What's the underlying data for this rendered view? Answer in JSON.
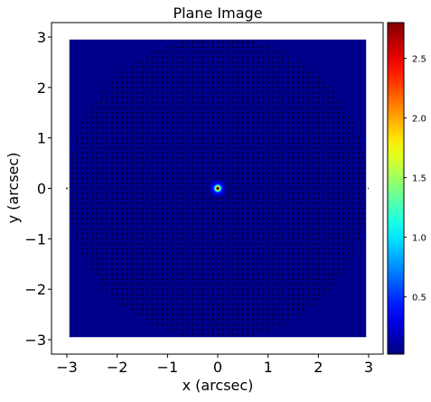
{
  "chart_data": {
    "type": "heatmap",
    "title": "Plane Image",
    "xlabel": "x (arcsec)",
    "ylabel": "y (arcsec)",
    "xlim": [
      -3.0,
      3.0
    ],
    "ylim": [
      -3.0,
      3.0
    ],
    "xticks": [
      -3,
      -2,
      -1,
      0,
      1,
      2,
      3
    ],
    "yticks": [
      -3,
      -2,
      -1,
      0,
      1,
      2,
      3
    ],
    "xtick_labels": [
      "−3",
      "−2",
      "−1",
      "0",
      "1",
      "2",
      "3"
    ],
    "ytick_labels": [
      "−3",
      "−2",
      "−1",
      "0",
      "1",
      "2",
      "3"
    ],
    "image_extent": {
      "x": [
        -2.95,
        2.95
      ],
      "y": [
        -2.95,
        2.95
      ]
    },
    "grid": false,
    "colormap": "jet",
    "colorbar": {
      "range": [
        0.02,
        2.8
      ],
      "ticks": [
        0.5,
        1.0,
        1.5,
        2.0,
        2.5
      ],
      "tick_labels": [
        "0.5",
        "1.0",
        "1.5",
        "2.0",
        "2.5"
      ]
    },
    "background_level": 0.05,
    "source": {
      "x": 0.0,
      "y": 0.0,
      "peak": 2.8,
      "sigma_arcsec": 0.06
    },
    "grid_mask": {
      "spacing_arcsec": 0.1,
      "radius_arcsec": 3.0,
      "color": "#000000"
    },
    "colors": {
      "axes": "#000000",
      "background": "#ffffff"
    }
  }
}
